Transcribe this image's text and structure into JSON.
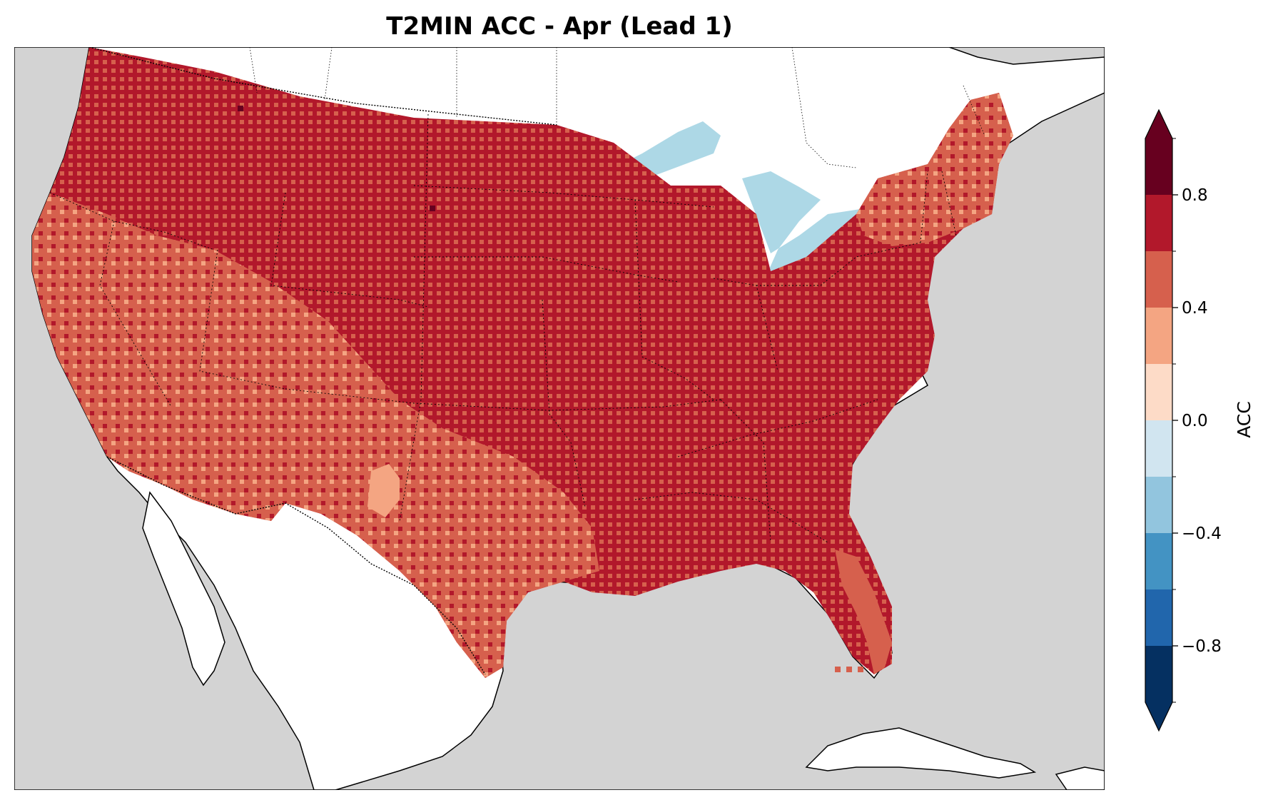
{
  "title": "T2MIN ACC - Apr (Lead 1)",
  "colorbar": {
    "label": "ACC",
    "ticks": [
      "0.8",
      "0.4",
      "0.0",
      "−0.4",
      "−0.8"
    ],
    "tick_values": [
      0.8,
      0.4,
      0.0,
      -0.4,
      -0.8
    ],
    "range": [
      -1.0,
      1.0
    ],
    "extend": "both",
    "levels": [
      -1.0,
      -0.8,
      -0.6,
      -0.4,
      -0.2,
      0.0,
      0.2,
      0.4,
      0.6,
      0.8,
      1.0
    ],
    "colors": [
      "#053061",
      "#2166ac",
      "#4393c3",
      "#92c5de",
      "#d1e5f0",
      "#fddbc7",
      "#f4a582",
      "#d6604d",
      "#b2182b",
      "#67001f"
    ],
    "over_color": "#67001f",
    "under_color": "#053061"
  },
  "map": {
    "ocean_color": "#d3d3d3",
    "land_color": "#ffffff",
    "lake_color": "#add8e6",
    "dominant_acc_color": "#b2182b",
    "western_acc_color": "#d6604d",
    "low_acc_color": "#f4a582",
    "peak_acc_color": "#67001f"
  }
}
